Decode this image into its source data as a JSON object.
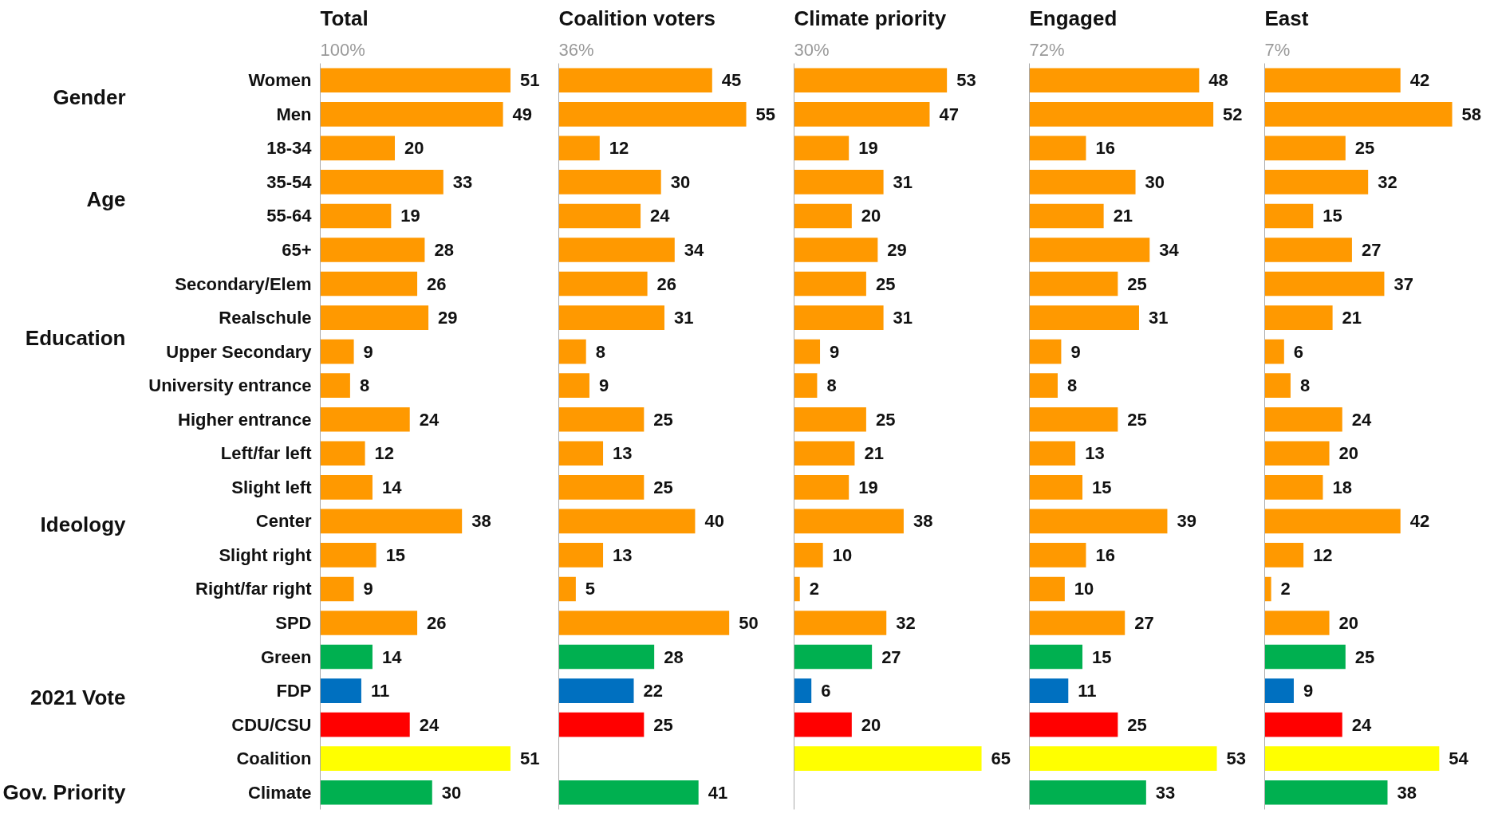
{
  "chart_data": [
    {
      "type": "bar",
      "orientation": "horizontal",
      "title": "Total",
      "subtitle": "100%",
      "tick_labels": "y",
      "data_labels": true,
      "categories": [
        "Women",
        "Men",
        "18-34",
        "35-54",
        "55-64",
        "65+",
        "Secondary/Elem",
        "Realschule",
        "Upper Secondary",
        "University entrance",
        "Higher entrance",
        "Left/far left",
        "Slight left",
        "Center",
        "Slight right",
        "Right/far right",
        "SPD",
        "Green",
        "FDP",
        "CDU/CSU",
        "Coalition",
        "Climate"
      ],
      "values": [
        51,
        49,
        20,
        33,
        19,
        28,
        26,
        29,
        9,
        8,
        24,
        12,
        14,
        38,
        15,
        9,
        26,
        14,
        11,
        24,
        51,
        30
      ],
      "colors": [
        "#ff9900",
        "#ff9900",
        "#ff9900",
        "#ff9900",
        "#ff9900",
        "#ff9900",
        "#ff9900",
        "#ff9900",
        "#ff9900",
        "#ff9900",
        "#ff9900",
        "#ff9900",
        "#ff9900",
        "#ff9900",
        "#ff9900",
        "#ff9900",
        "#ff9900",
        "#00b050",
        "#0070c0",
        "#ff0000",
        "#ffff00",
        "#00b050"
      ],
      "annotations": [
        "Gender",
        "Age",
        "Education",
        "Ideology",
        "2021 Vote",
        "Gov. Priority"
      ]
    },
    {
      "type": "bar",
      "orientation": "horizontal",
      "title": "Coalition voters",
      "subtitle": "36%",
      "tick_labels": false,
      "data_labels": true,
      "categories": [
        null,
        null,
        null,
        null,
        null,
        null,
        null,
        null,
        null,
        null,
        null,
        null,
        null,
        null,
        null,
        null,
        null,
        null,
        null,
        null,
        null,
        null
      ],
      "values": [
        45,
        55,
        12,
        30,
        24,
        34,
        26,
        31,
        8,
        9,
        25,
        13,
        25,
        40,
        13,
        5,
        50,
        28,
        22,
        25,
        null,
        41
      ],
      "colors": [
        "#ff9900",
        "#ff9900",
        "#ff9900",
        "#ff9900",
        "#ff9900",
        "#ff9900",
        "#ff9900",
        "#ff9900",
        "#ff9900",
        "#ff9900",
        "#ff9900",
        "#ff9900",
        "#ff9900",
        "#ff9900",
        "#ff9900",
        "#ff9900",
        "#ff9900",
        "#00b050",
        "#0070c0",
        "#ff0000",
        "#ffff00",
        "#00b050"
      ]
    },
    {
      "type": "bar",
      "orientation": "horizontal",
      "title": "Climate priority",
      "subtitle": "30%",
      "tick_labels": false,
      "data_labels": true,
      "categories": [
        null,
        null,
        null,
        null,
        null,
        null,
        null,
        null,
        null,
        null,
        null,
        null,
        null,
        null,
        null,
        null,
        null,
        null,
        null,
        null,
        null,
        null
      ],
      "values": [
        53,
        47,
        19,
        31,
        20,
        29,
        25,
        31,
        9,
        8,
        25,
        21,
        19,
        38,
        10,
        2,
        32,
        27,
        6,
        20,
        65,
        null
      ],
      "colors": [
        "#ff9900",
        "#ff9900",
        "#ff9900",
        "#ff9900",
        "#ff9900",
        "#ff9900",
        "#ff9900",
        "#ff9900",
        "#ff9900",
        "#ff9900",
        "#ff9900",
        "#ff9900",
        "#ff9900",
        "#ff9900",
        "#ff9900",
        "#ff9900",
        "#ff9900",
        "#00b050",
        "#0070c0",
        "#ff0000",
        "#ffff00",
        "#00b050"
      ]
    },
    {
      "type": "bar",
      "orientation": "horizontal",
      "title": "Engaged",
      "subtitle": "72%",
      "tick_labels": false,
      "data_labels": true,
      "categories": [
        null,
        null,
        null,
        null,
        null,
        null,
        null,
        null,
        null,
        null,
        null,
        null,
        null,
        null,
        null,
        null,
        null,
        null,
        null,
        null,
        null,
        null
      ],
      "values": [
        48,
        52,
        16,
        30,
        21,
        34,
        25,
        31,
        9,
        8,
        25,
        13,
        15,
        39,
        16,
        10,
        27,
        15,
        11,
        25,
        53,
        33
      ],
      "colors": [
        "#ff9900",
        "#ff9900",
        "#ff9900",
        "#ff9900",
        "#ff9900",
        "#ff9900",
        "#ff9900",
        "#ff9900",
        "#ff9900",
        "#ff9900",
        "#ff9900",
        "#ff9900",
        "#ff9900",
        "#ff9900",
        "#ff9900",
        "#ff9900",
        "#ff9900",
        "#00b050",
        "#0070c0",
        "#ff0000",
        "#ffff00",
        "#00b050"
      ]
    },
    {
      "type": "bar",
      "orientation": "horizontal",
      "title": "East",
      "subtitle": "7%",
      "tick_labels": false,
      "data_labels": true,
      "categories": [
        null,
        null,
        null,
        null,
        null,
        null,
        null,
        null,
        null,
        null,
        null,
        null,
        null,
        null,
        null,
        null,
        null,
        null,
        null,
        null,
        null,
        null
      ],
      "values": [
        42,
        58,
        25,
        32,
        15,
        27,
        37,
        21,
        6,
        8,
        24,
        20,
        18,
        42,
        12,
        2,
        20,
        25,
        9,
        24,
        54,
        38
      ],
      "colors": [
        "#ff9900",
        "#ff9900",
        "#ff9900",
        "#ff9900",
        "#ff9900",
        "#ff9900",
        "#ff9900",
        "#ff9900",
        "#ff9900",
        "#ff9900",
        "#ff9900",
        "#ff9900",
        "#ff9900",
        "#ff9900",
        "#ff9900",
        "#ff9900",
        "#ff9900",
        "#00b050",
        "#0070c0",
        "#ff0000",
        "#ffff00",
        "#00b050"
      ]
    }
  ]
}
